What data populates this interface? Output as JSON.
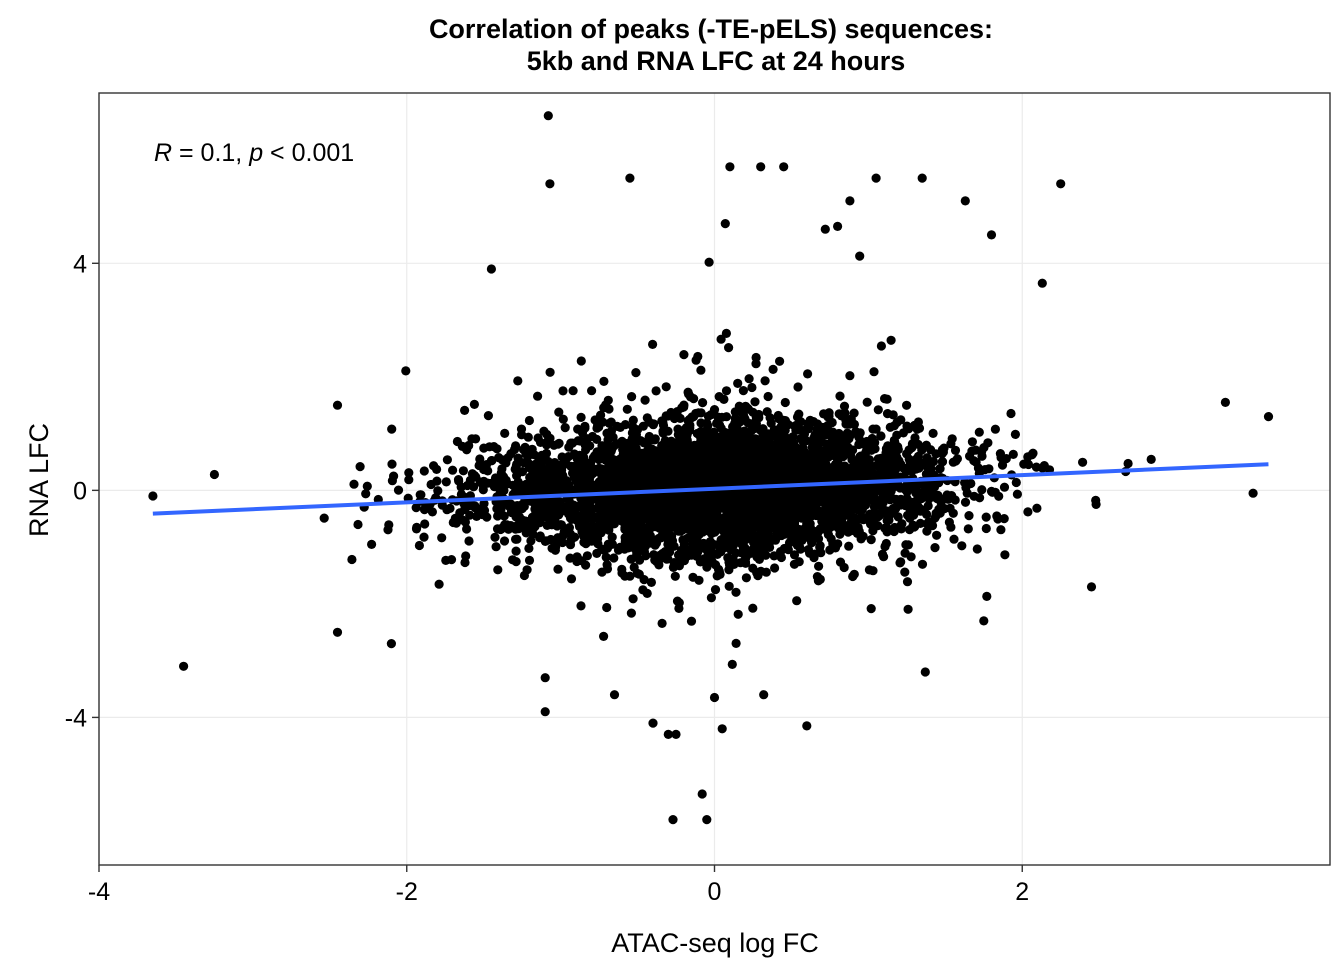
{
  "chart_data": {
    "type": "scatter",
    "title": [
      "Correlation of peaks (-TE-pELS) sequences:",
      "5kb and RNA LFC at 24 hours"
    ],
    "xlabel": "ATAC-seq log FC",
    "ylabel": "RNA LFC",
    "xlim": [
      -4.0,
      4.0
    ],
    "ylim": [
      -6.6,
      7.0
    ],
    "x_ticks": [
      -4,
      -2,
      0,
      2
    ],
    "y_ticks": [
      -4,
      0,
      4
    ],
    "grid": true,
    "legend": "none",
    "annotation": {
      "r_sym": "R",
      "r_val": " = 0.1, ",
      "p_sym": "p",
      "p_val": " < 0.001"
    },
    "point_color": "#000000",
    "fit_line": {
      "color": "#3366ff",
      "x": [
        -3.65,
        3.6
      ],
      "y": [
        -0.41,
        0.46
      ]
    },
    "highlighted_points": [
      [
        -1.08,
        6.6
      ],
      [
        -1.07,
        5.4
      ],
      [
        -0.55,
        5.5
      ],
      [
        0.1,
        5.7
      ],
      [
        0.3,
        5.7
      ],
      [
        0.45,
        5.7
      ],
      [
        0.88,
        5.1
      ],
      [
        1.05,
        5.5
      ],
      [
        1.35,
        5.5
      ],
      [
        1.63,
        5.1
      ],
      [
        2.25,
        5.4
      ],
      [
        0.07,
        4.7
      ],
      [
        0.72,
        4.6
      ],
      [
        0.8,
        4.65
      ],
      [
        1.8,
        4.5
      ],
      [
        -1.45,
        3.9
      ],
      [
        2.13,
        3.65
      ],
      [
        3.32,
        1.55
      ],
      [
        3.6,
        1.3
      ],
      [
        3.5,
        -0.05
      ],
      [
        -3.65,
        -0.1
      ],
      [
        -3.25,
        0.28
      ],
      [
        -2.45,
        1.5
      ],
      [
        -3.45,
        -3.1
      ],
      [
        -2.45,
        -2.5
      ],
      [
        -2.1,
        -2.7
      ],
      [
        -1.1,
        -3.3
      ],
      [
        -1.1,
        -3.9
      ],
      [
        -0.4,
        -4.1
      ],
      [
        -0.3,
        -4.3
      ],
      [
        -0.25,
        -4.3
      ],
      [
        0.05,
        -4.2
      ],
      [
        0.6,
        -4.15
      ],
      [
        1.37,
        -3.2
      ],
      [
        2.45,
        -1.7
      ],
      [
        -0.27,
        -5.8
      ],
      [
        -0.05,
        -5.8
      ],
      [
        -0.08,
        -5.35
      ],
      [
        -0.65,
        -3.6
      ],
      [
        0.32,
        -3.6
      ],
      [
        0.0,
        -3.65
      ],
      [
        1.75,
        -2.3
      ]
    ],
    "bulk_cloud": {
      "description_free": true,
      "n": 4400,
      "x_mean": 0.0,
      "x_sd": 0.75,
      "y_sd_core": 0.55,
      "y_sd_tail": 1.05,
      "fit_slope": 0.12,
      "fit_intercept": 0.025
    }
  }
}
